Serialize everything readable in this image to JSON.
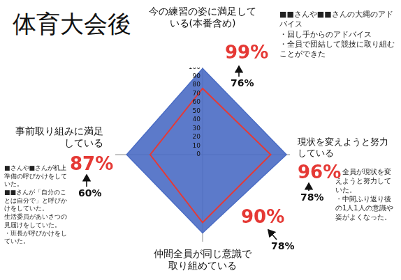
{
  "chart_data": {
    "type": "radar",
    "title": "体育大会後",
    "categories": [
      "今の練習の姿に満足している(本番含め)",
      "現状を変えようと努力している",
      "仲間全員が同じ意識で取り組めている",
      "事前取り組みに満足している"
    ],
    "series": [
      {
        "color": "#4a6cc4",
        "values": [
          99,
          96,
          90,
          87
        ],
        "value_labels": [
          "99%",
          "96%",
          "90%",
          "87%"
        ]
      },
      {
        "color": "#e53935",
        "values": [
          76,
          78,
          78,
          60
        ],
        "value_labels": [
          "76%",
          "78%",
          "78%",
          "60%"
        ]
      }
    ],
    "ylim": [
      0,
      100
    ],
    "yticks": [
      0,
      10,
      20,
      30,
      40,
      50,
      60,
      70,
      80,
      90,
      100
    ],
    "grid": false,
    "data_labels": true,
    "annotations": [
      [
        "■■さんや■■さんの大縄のアドバイス",
        "・回し手からのアドバイス",
        "・全員で団結して競技に取り組むことができた"
      ],
      [
        "・全員が現状を変えようと努力していた。",
        "・中間ふり返り後の1人1人の意識や姿がよくなった。"
      ],
      null,
      [
        "■さんや■さんが机上準備の呼びかけをしていた。",
        "■■さんが「自分のことは自分で」と呼びかけをしていた。",
        "生活委員があいさつの見届けをしていた。",
        "・班長が呼びかけをしていた。"
      ]
    ]
  }
}
